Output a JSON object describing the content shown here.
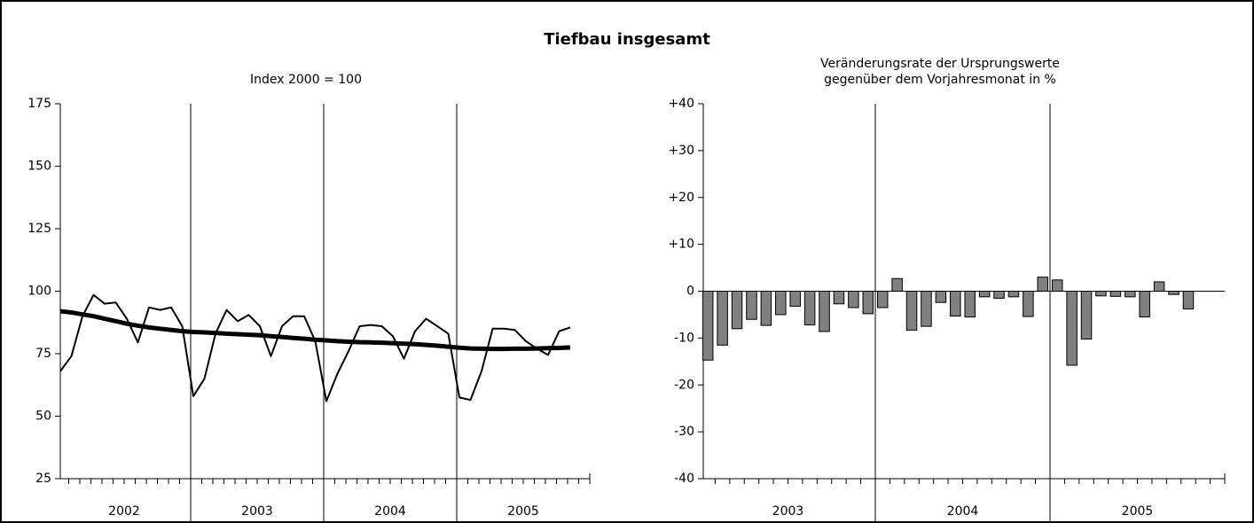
{
  "title": "Tiefbau insgesamt",
  "chart_data": [
    {
      "type": "line",
      "subtitle": [
        "Index 2000 = 100"
      ],
      "year_labels": [
        "2002",
        "2003",
        "2004",
        "2005"
      ],
      "ylim": [
        25,
        175
      ],
      "yticks": [
        25,
        50,
        75,
        100,
        125,
        150,
        175
      ],
      "series": [
        {
          "color": "#000000",
          "width": 2,
          "values": [
            68,
            74,
            90,
            98.5,
            95,
            95.5,
            89,
            79.5,
            93.5,
            92.5,
            93.5,
            86,
            58,
            65,
            83,
            92.5,
            88,
            90.5,
            86,
            74,
            86,
            90,
            90,
            80,
            56,
            67,
            76,
            86,
            86.5,
            86,
            82,
            73,
            84,
            89,
            86,
            83,
            57.5,
            56.5,
            68,
            85,
            85,
            84.5,
            80,
            77,
            74.5,
            84,
            85.5,
            null
          ]
        },
        {
          "color": "#000000",
          "width": 5,
          "values": [
            92,
            91.5,
            90.7,
            90,
            89,
            88,
            87,
            86.2,
            85.5,
            85,
            84.5,
            84,
            83.7,
            83.5,
            83.3,
            83,
            82.8,
            82.6,
            82.4,
            82,
            81.7,
            81.3,
            81,
            80.6,
            80.3,
            80,
            79.8,
            79.6,
            79.5,
            79.4,
            79.2,
            79,
            78.8,
            78.5,
            78.2,
            77.8,
            77.4,
            77.1,
            77,
            76.9,
            76.9,
            77,
            77,
            77.1,
            77.2,
            77.3,
            77.5,
            null
          ]
        }
      ]
    },
    {
      "type": "bar",
      "subtitle": [
        "Veränderungsrate der Ursprungswerte",
        "gegenüber dem Vorjahresmonat in %"
      ],
      "year_labels": [
        "2003",
        "2004",
        "2005"
      ],
      "ylim": [
        -40,
        40
      ],
      "yticks": [
        -40,
        -30,
        -20,
        -10,
        0,
        {
          "value": 10,
          "label": "+10"
        },
        {
          "value": 20,
          "label": "+20"
        },
        {
          "value": 30,
          "label": "+30"
        },
        {
          "value": 40,
          "label": "+40"
        }
      ],
      "series": [
        {
          "color": "#808080",
          "values": [
            -14.7,
            -11.5,
            -8,
            -6,
            -7.3,
            -5,
            -3.2,
            -7.2,
            -8.6,
            -2.7,
            -3.5,
            -4.8,
            -3.5,
            2.7,
            -8.3,
            -7.5,
            -2.4,
            -5.3,
            -5.5,
            -1.2,
            -1.5,
            -1.2,
            -5.4,
            3,
            2.4,
            -15.8,
            -10.2,
            -1,
            -1.1,
            -1.2,
            -5.5,
            2,
            -0.7,
            -3.8,
            null,
            null
          ]
        }
      ]
    }
  ]
}
